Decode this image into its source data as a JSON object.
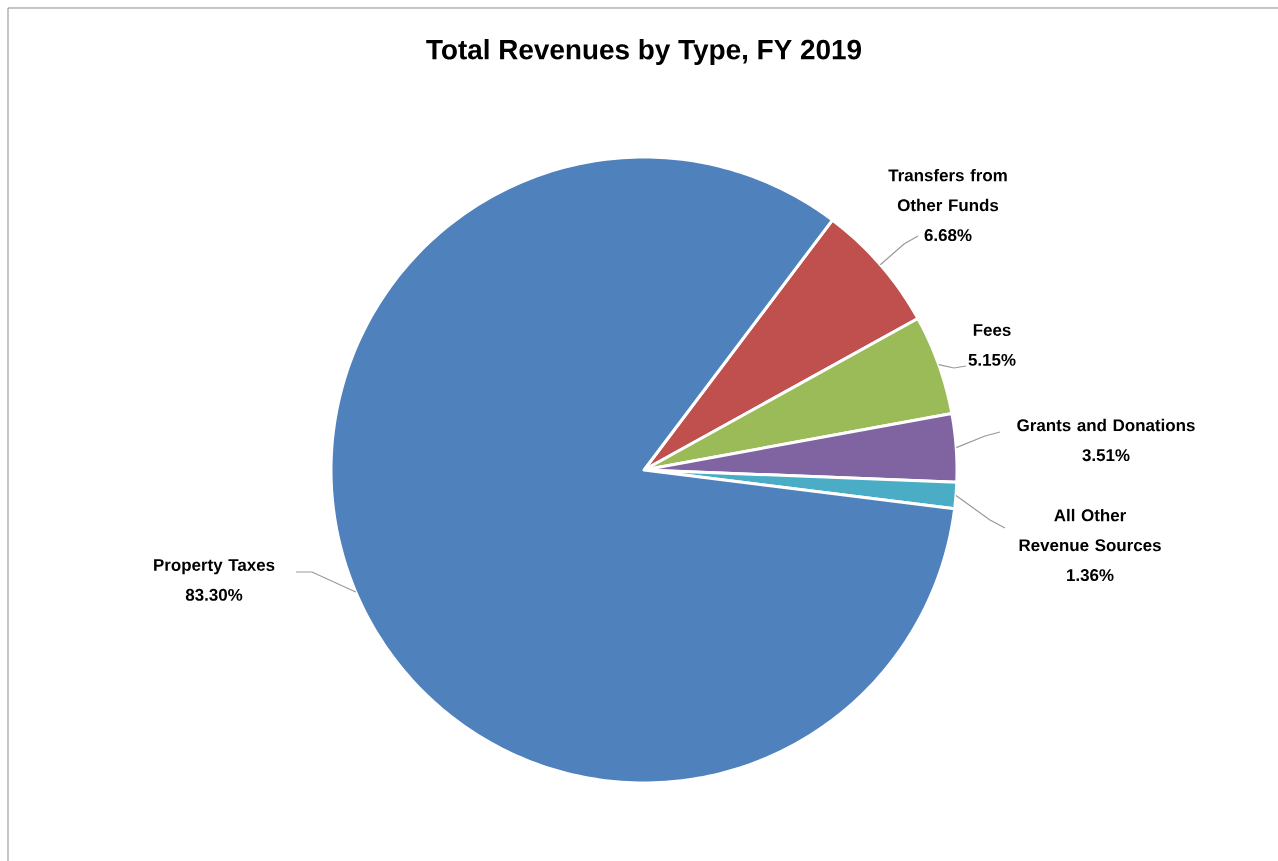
{
  "chart_data": {
    "type": "pie",
    "title": "Total Revenues by Type, FY  2019",
    "categories": [
      "Transfers from Other Funds",
      "Fees",
      "Grants and Donations",
      "All Other Revenue Sources",
      "Property Taxes"
    ],
    "values": [
      6.68,
      5.15,
      3.51,
      1.36,
      83.3
    ],
    "value_labels": [
      "6.68%",
      "5.15%",
      "3.51%",
      "1.36%",
      "83.30%"
    ],
    "colors": [
      "#c0504d",
      "#9bbb59",
      "#8064a2",
      "#4bacc6",
      "#4f81bd"
    ]
  }
}
